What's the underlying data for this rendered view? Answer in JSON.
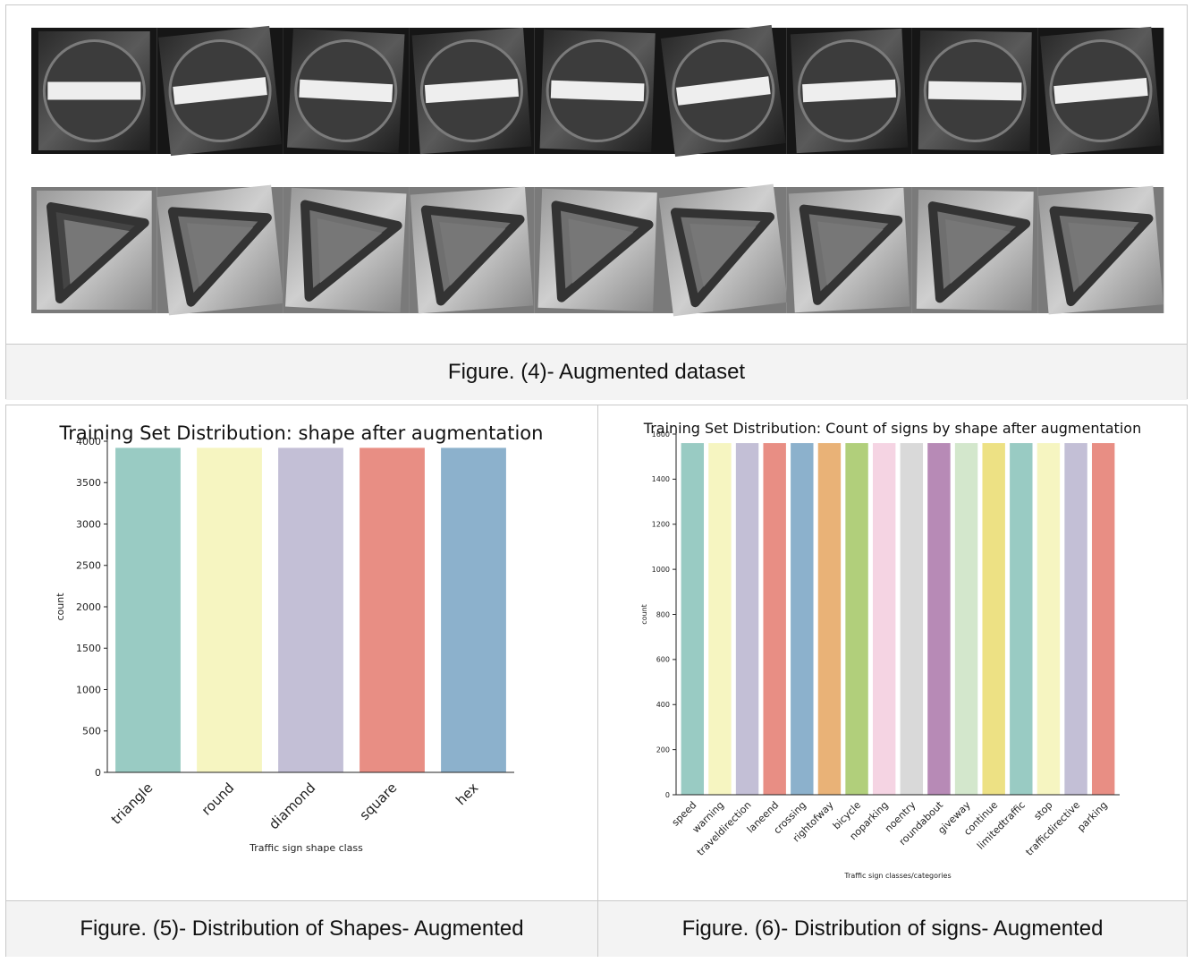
{
  "figure4": {
    "caption": "Figure. (4)- Augmented dataset",
    "rows": [
      {
        "sign": "no-entry-sign",
        "count": 9
      },
      {
        "sign": "yield-triangle-sign",
        "count": 9
      }
    ]
  },
  "figure5": {
    "caption": "Figure. (5)- Distribution of Shapes- Augmented"
  },
  "figure6": {
    "caption": "Figure. (6)- Distribution of signs- Augmented"
  },
  "chart_data": [
    {
      "type": "bar",
      "title": "Training Set Distribution: shape after augmentation",
      "xlabel": "Traffic sign shape class",
      "ylabel": "count",
      "categories": [
        "triangle",
        "round",
        "diamond",
        "square",
        "hex"
      ],
      "values": [
        3920,
        3920,
        3920,
        3920,
        3920
      ],
      "colors": [
        "#99cbc3",
        "#f6f5c1",
        "#c3bfd6",
        "#e88e84",
        "#8cb1cc"
      ],
      "ylim": [
        0,
        4000
      ],
      "yticks": [
        0,
        500,
        1000,
        1500,
        2000,
        2500,
        3000,
        3500,
        4000
      ],
      "grid": false,
      "legend": "none"
    },
    {
      "type": "bar",
      "title": "Training Set Distribution: Count of signs by shape after augmentation",
      "xlabel": "Traffic sign classes/categories",
      "ylabel": "count",
      "categories": [
        "speed",
        "warning",
        "traveldirection",
        "laneend",
        "crossing",
        "rightofway",
        "bicycle",
        "noparking",
        "noentry",
        "roundabout",
        "giveway",
        "continue",
        "limitedtraffic",
        "stop",
        "trafficdirective",
        "parking"
      ],
      "values": [
        1560,
        1560,
        1560,
        1560,
        1560,
        1560,
        1560,
        1560,
        1560,
        1560,
        1560,
        1560,
        1560,
        1560,
        1560,
        1560
      ],
      "colors": [
        "#99cbc3",
        "#f6f5c1",
        "#c3bfd6",
        "#e88e84",
        "#8cb1cc",
        "#e9b277",
        "#b1cf7b",
        "#f5d4e3",
        "#d9d9d9",
        "#b78ab6",
        "#d3e7cc",
        "#ede184",
        "#99cbc3",
        "#f6f5c1",
        "#c3bfd6",
        "#e88e84"
      ],
      "ylim": [
        0,
        1600
      ],
      "yticks": [
        0,
        200,
        400,
        600,
        800,
        1000,
        1200,
        1400,
        1600
      ],
      "grid": false,
      "legend": "none"
    }
  ]
}
